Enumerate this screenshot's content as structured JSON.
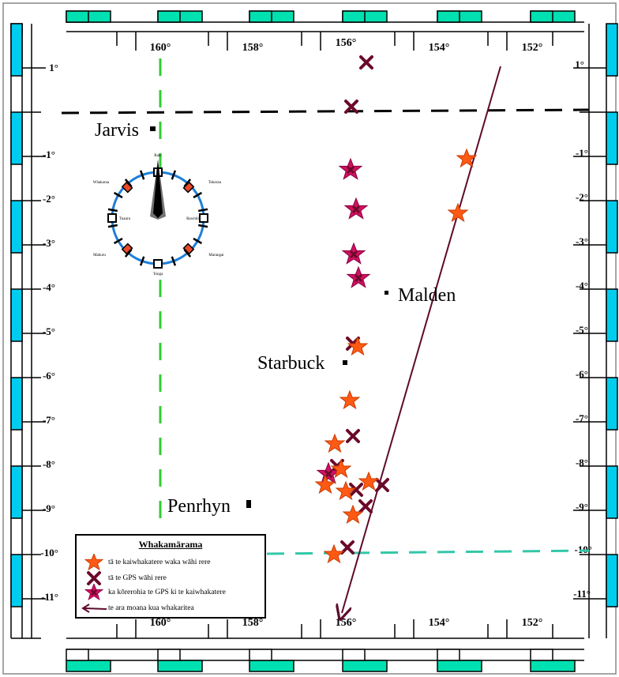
{
  "map": {
    "lon_labels_top": [
      "160°",
      "158°",
      "156°",
      "154°",
      "152°"
    ],
    "lon_labels_bottom": [
      "160°",
      "158°",
      "156°",
      "154°",
      "152°"
    ],
    "lat_labels_left": [
      "1°",
      "-1°",
      "-2°",
      "-3°",
      "-4°",
      "-5°",
      "-6°",
      "-7°",
      "-8°",
      "-9°",
      "-10°",
      "-11°"
    ],
    "lat_labels_right": [
      "1°",
      "-1°",
      "-2°",
      "-3°",
      "-4°",
      "-5°",
      "-6°",
      "-7°",
      "-8°",
      "-9°",
      "-10°",
      "-11°"
    ],
    "islands": [
      {
        "name": "Jarvis"
      },
      {
        "name": "Malden"
      },
      {
        "name": "Starbuck"
      },
      {
        "name": "Penrhyn"
      }
    ],
    "compass_labels": [
      "Whakarua",
      "Tokerau",
      "Mahuru",
      "Marangai",
      "Tonga",
      "Raki",
      "Rawhiti",
      "Tuauru"
    ],
    "colors": {
      "navigator_star": "#ff5a14",
      "gps_cross": "#6b0a28",
      "overlap_star": "#d01060",
      "route_line": "#5e0a2c",
      "equator_line": "#000000",
      "meridian_line": "#33cc33",
      "south_line": "#33c7a8",
      "frame_cyan": "#00ccee",
      "frame_teal": "#00e0b0"
    }
  },
  "legend": {
    "title": "Whakamārama",
    "items": [
      {
        "icon": "orange-star-icon",
        "text": "tā te kaiwhakatere waka wāhi rere"
      },
      {
        "icon": "dark-cross-icon",
        "text": "tā te GPS wāhi rere"
      },
      {
        "icon": "magenta-star-icon",
        "text": "ka kōrerohia te GPS ki te kaiwhakatere"
      },
      {
        "icon": "arrow-line-icon",
        "text": "te ara moana kua whakaritea"
      }
    ]
  }
}
